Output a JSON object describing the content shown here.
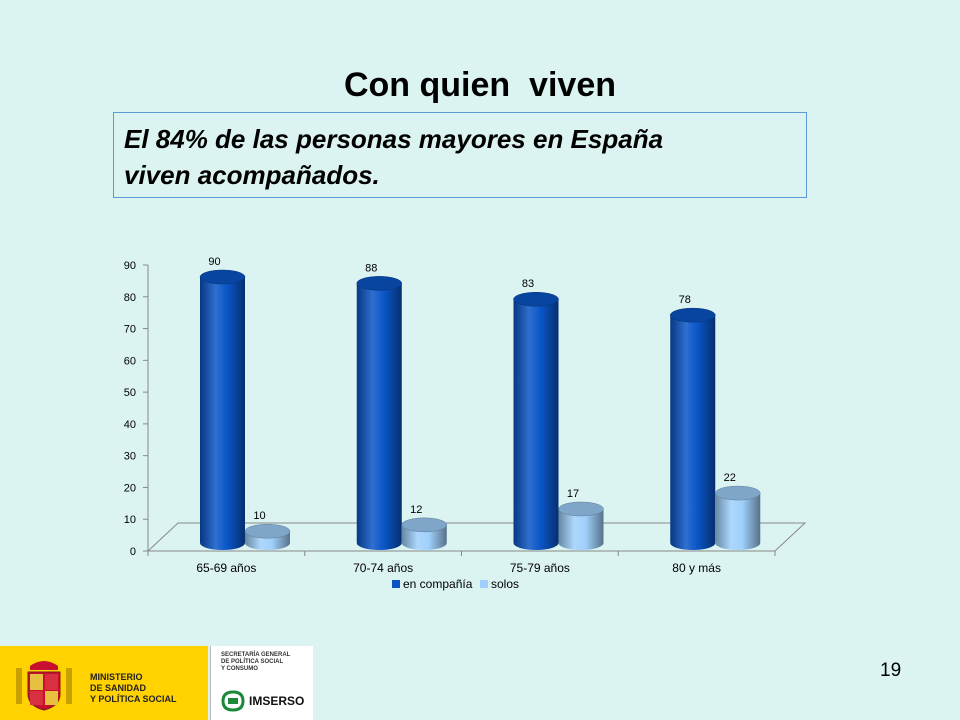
{
  "slide": {
    "title": "Con quien  viven",
    "subtitle_line1": "El 84% de las personas mayores en España",
    "subtitle_line2": "viven acompañados.",
    "page_number": "19"
  },
  "footer": {
    "ministry_line1": "MINISTERIO",
    "ministry_line2": "DE SANIDAD",
    "ministry_line3": "Y POLÍTICA SOCIAL",
    "secretaria_line1": "SECRETARÍA GENERAL",
    "secretaria_line2": "DE POLÍTICA SOCIAL",
    "secretaria_line3": "Y CONSUMO",
    "imserso": "IMSERSO",
    "colors": {
      "band": "#ffd200",
      "crest_red": "#c8102e"
    }
  },
  "chart_data": {
    "type": "bar",
    "categories": [
      "65-69 años",
      "70-74 años",
      "75-79 años",
      "80 y más"
    ],
    "series": [
      {
        "name": "en compañía",
        "values": [
          90,
          88,
          83,
          78
        ],
        "color": "#0a56c8"
      },
      {
        "name": "solos",
        "values": [
          10,
          12,
          17,
          22
        ],
        "color": "#9fd0fb"
      }
    ],
    "ylim": [
      0,
      90
    ],
    "yticks": [
      0,
      10,
      20,
      30,
      40,
      50,
      60,
      70,
      80,
      90
    ],
    "xlabel": "",
    "ylabel": "",
    "grid": false,
    "legend": "bottom",
    "style": "3d-cylinder"
  }
}
